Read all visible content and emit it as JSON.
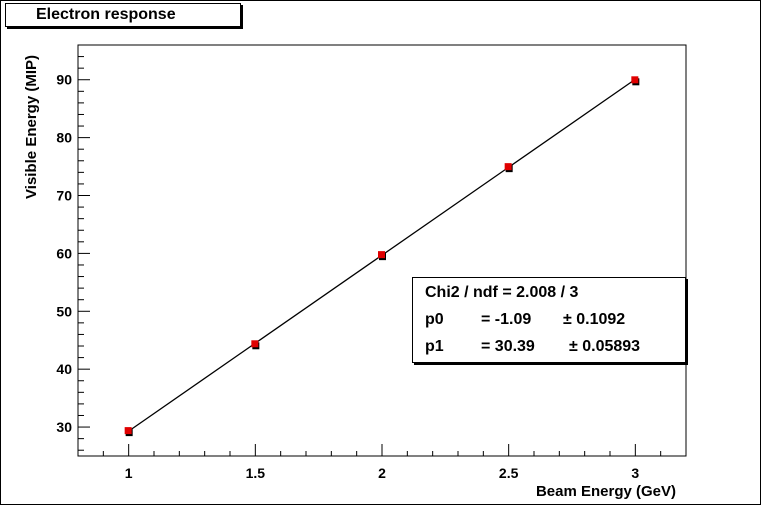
{
  "chart_data": {
    "type": "scatter",
    "title": "Electron response",
    "xlabel": "Beam Energy (GeV)",
    "ylabel": "Visible Energy (MIP)",
    "xlim": [
      0.8,
      3.2
    ],
    "ylim": [
      25,
      96
    ],
    "x_ticks": [
      "1",
      "1.5",
      "2",
      "2.5",
      "3"
    ],
    "y_ticks": [
      "30",
      "40",
      "50",
      "60",
      "70",
      "80",
      "90"
    ],
    "series": [
      {
        "x": [
          1,
          1.5,
          2,
          2.5,
          3
        ],
        "y": [
          29.3,
          44.3,
          59.7,
          74.9,
          89.9
        ],
        "marker": "square",
        "marker_color": "#e00000"
      }
    ],
    "fit": {
      "p0": -1.09,
      "p1": 30.39,
      "color": "#000000"
    },
    "stats": {
      "chi2": "Chi2 / ndf = 2.008 / 3",
      "p0_name": "p0",
      "p0_value": "= -1.09",
      "p0_error": "± 0.1092",
      "p1_name": "p1",
      "p1_value": "= 30.39",
      "p1_error": "± 0.05893"
    }
  }
}
